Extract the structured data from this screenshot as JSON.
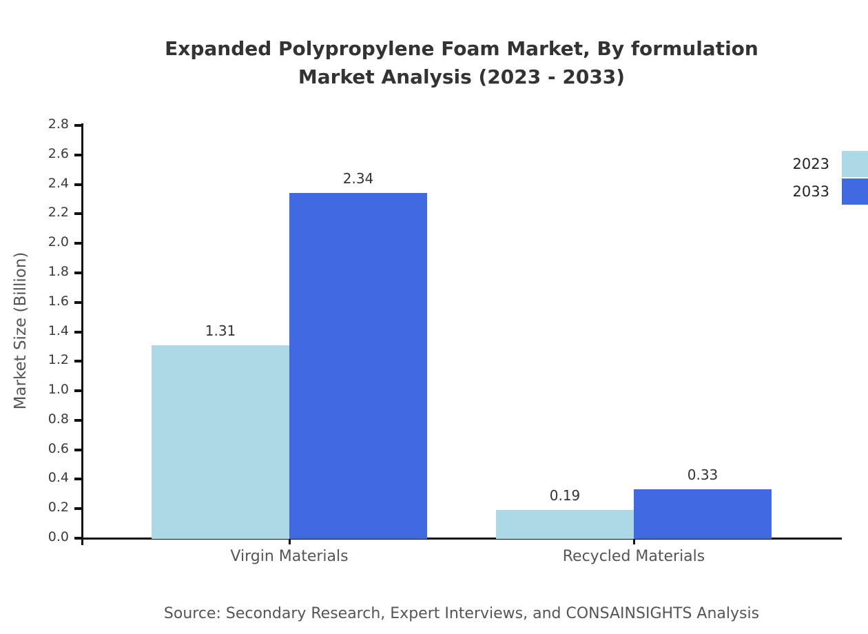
{
  "title": {
    "line1": "Expanded Polypropylene Foam Market, By formulation",
    "line2": "Market Analysis (2023 - 2033)"
  },
  "source": "Source: Secondary Research, Expert Interviews, and CONSAINSIGHTS Analysis",
  "chart_data": {
    "type": "bar",
    "title": "Expanded Polypropylene Foam Market, By formulation Market Analysis (2023 - 2033)",
    "categories": [
      "Virgin Materials",
      "Recycled Materials"
    ],
    "series": [
      {
        "name": "2023",
        "color": "#add8e6",
        "values": [
          1.31,
          0.19
        ]
      },
      {
        "name": "2033",
        "color": "#4169e1",
        "values": [
          2.34,
          0.33
        ]
      }
    ],
    "xlabel": "",
    "ylabel": "Market Size (Billion)",
    "ylim": [
      0,
      2.8
    ],
    "ytick_step": 0.2,
    "value_labels": true,
    "legend_position": "top-right",
    "grid": false
  }
}
